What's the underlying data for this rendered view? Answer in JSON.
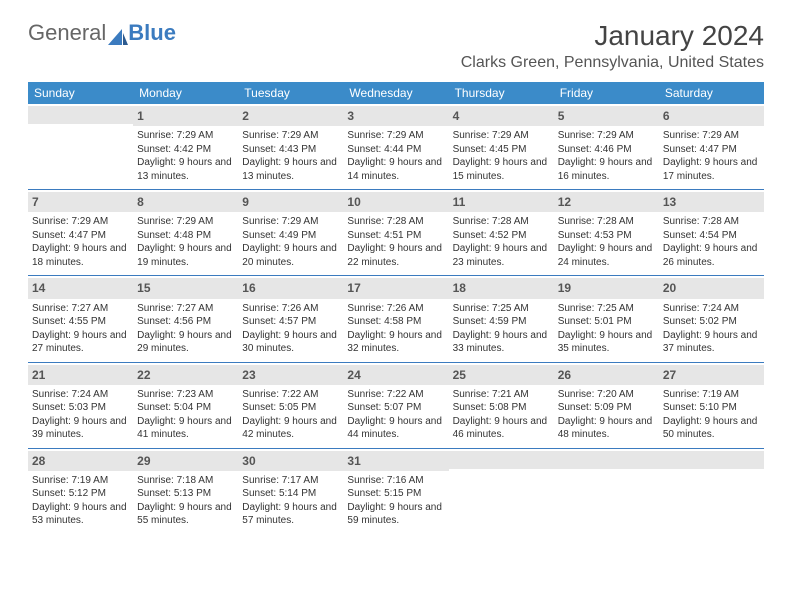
{
  "logo": {
    "first": "General",
    "second": "Blue"
  },
  "title": "January 2024",
  "location": "Clarks Green, Pennsylvania, United States",
  "dow": [
    "Sunday",
    "Monday",
    "Tuesday",
    "Wednesday",
    "Thursday",
    "Friday",
    "Saturday"
  ],
  "colors": {
    "header_bg": "#3b8bc9",
    "header_fg": "#ffffff",
    "daynum_bg": "#e6e6e6",
    "rule": "#3b7bbf",
    "brand_blue": "#3b7bbf"
  },
  "weeks": [
    [
      {
        "n": "",
        "sunrise": "",
        "sunset": "",
        "daylight": ""
      },
      {
        "n": "1",
        "sunrise": "Sunrise: 7:29 AM",
        "sunset": "Sunset: 4:42 PM",
        "daylight": "Daylight: 9 hours and 13 minutes."
      },
      {
        "n": "2",
        "sunrise": "Sunrise: 7:29 AM",
        "sunset": "Sunset: 4:43 PM",
        "daylight": "Daylight: 9 hours and 13 minutes."
      },
      {
        "n": "3",
        "sunrise": "Sunrise: 7:29 AM",
        "sunset": "Sunset: 4:44 PM",
        "daylight": "Daylight: 9 hours and 14 minutes."
      },
      {
        "n": "4",
        "sunrise": "Sunrise: 7:29 AM",
        "sunset": "Sunset: 4:45 PM",
        "daylight": "Daylight: 9 hours and 15 minutes."
      },
      {
        "n": "5",
        "sunrise": "Sunrise: 7:29 AM",
        "sunset": "Sunset: 4:46 PM",
        "daylight": "Daylight: 9 hours and 16 minutes."
      },
      {
        "n": "6",
        "sunrise": "Sunrise: 7:29 AM",
        "sunset": "Sunset: 4:47 PM",
        "daylight": "Daylight: 9 hours and 17 minutes."
      }
    ],
    [
      {
        "n": "7",
        "sunrise": "Sunrise: 7:29 AM",
        "sunset": "Sunset: 4:47 PM",
        "daylight": "Daylight: 9 hours and 18 minutes."
      },
      {
        "n": "8",
        "sunrise": "Sunrise: 7:29 AM",
        "sunset": "Sunset: 4:48 PM",
        "daylight": "Daylight: 9 hours and 19 minutes."
      },
      {
        "n": "9",
        "sunrise": "Sunrise: 7:29 AM",
        "sunset": "Sunset: 4:49 PM",
        "daylight": "Daylight: 9 hours and 20 minutes."
      },
      {
        "n": "10",
        "sunrise": "Sunrise: 7:28 AM",
        "sunset": "Sunset: 4:51 PM",
        "daylight": "Daylight: 9 hours and 22 minutes."
      },
      {
        "n": "11",
        "sunrise": "Sunrise: 7:28 AM",
        "sunset": "Sunset: 4:52 PM",
        "daylight": "Daylight: 9 hours and 23 minutes."
      },
      {
        "n": "12",
        "sunrise": "Sunrise: 7:28 AM",
        "sunset": "Sunset: 4:53 PM",
        "daylight": "Daylight: 9 hours and 24 minutes."
      },
      {
        "n": "13",
        "sunrise": "Sunrise: 7:28 AM",
        "sunset": "Sunset: 4:54 PM",
        "daylight": "Daylight: 9 hours and 26 minutes."
      }
    ],
    [
      {
        "n": "14",
        "sunrise": "Sunrise: 7:27 AM",
        "sunset": "Sunset: 4:55 PM",
        "daylight": "Daylight: 9 hours and 27 minutes."
      },
      {
        "n": "15",
        "sunrise": "Sunrise: 7:27 AM",
        "sunset": "Sunset: 4:56 PM",
        "daylight": "Daylight: 9 hours and 29 minutes."
      },
      {
        "n": "16",
        "sunrise": "Sunrise: 7:26 AM",
        "sunset": "Sunset: 4:57 PM",
        "daylight": "Daylight: 9 hours and 30 minutes."
      },
      {
        "n": "17",
        "sunrise": "Sunrise: 7:26 AM",
        "sunset": "Sunset: 4:58 PM",
        "daylight": "Daylight: 9 hours and 32 minutes."
      },
      {
        "n": "18",
        "sunrise": "Sunrise: 7:25 AM",
        "sunset": "Sunset: 4:59 PM",
        "daylight": "Daylight: 9 hours and 33 minutes."
      },
      {
        "n": "19",
        "sunrise": "Sunrise: 7:25 AM",
        "sunset": "Sunset: 5:01 PM",
        "daylight": "Daylight: 9 hours and 35 minutes."
      },
      {
        "n": "20",
        "sunrise": "Sunrise: 7:24 AM",
        "sunset": "Sunset: 5:02 PM",
        "daylight": "Daylight: 9 hours and 37 minutes."
      }
    ],
    [
      {
        "n": "21",
        "sunrise": "Sunrise: 7:24 AM",
        "sunset": "Sunset: 5:03 PM",
        "daylight": "Daylight: 9 hours and 39 minutes."
      },
      {
        "n": "22",
        "sunrise": "Sunrise: 7:23 AM",
        "sunset": "Sunset: 5:04 PM",
        "daylight": "Daylight: 9 hours and 41 minutes."
      },
      {
        "n": "23",
        "sunrise": "Sunrise: 7:22 AM",
        "sunset": "Sunset: 5:05 PM",
        "daylight": "Daylight: 9 hours and 42 minutes."
      },
      {
        "n": "24",
        "sunrise": "Sunrise: 7:22 AM",
        "sunset": "Sunset: 5:07 PM",
        "daylight": "Daylight: 9 hours and 44 minutes."
      },
      {
        "n": "25",
        "sunrise": "Sunrise: 7:21 AM",
        "sunset": "Sunset: 5:08 PM",
        "daylight": "Daylight: 9 hours and 46 minutes."
      },
      {
        "n": "26",
        "sunrise": "Sunrise: 7:20 AM",
        "sunset": "Sunset: 5:09 PM",
        "daylight": "Daylight: 9 hours and 48 minutes."
      },
      {
        "n": "27",
        "sunrise": "Sunrise: 7:19 AM",
        "sunset": "Sunset: 5:10 PM",
        "daylight": "Daylight: 9 hours and 50 minutes."
      }
    ],
    [
      {
        "n": "28",
        "sunrise": "Sunrise: 7:19 AM",
        "sunset": "Sunset: 5:12 PM",
        "daylight": "Daylight: 9 hours and 53 minutes."
      },
      {
        "n": "29",
        "sunrise": "Sunrise: 7:18 AM",
        "sunset": "Sunset: 5:13 PM",
        "daylight": "Daylight: 9 hours and 55 minutes."
      },
      {
        "n": "30",
        "sunrise": "Sunrise: 7:17 AM",
        "sunset": "Sunset: 5:14 PM",
        "daylight": "Daylight: 9 hours and 57 minutes."
      },
      {
        "n": "31",
        "sunrise": "Sunrise: 7:16 AM",
        "sunset": "Sunset: 5:15 PM",
        "daylight": "Daylight: 9 hours and 59 minutes."
      },
      {
        "n": "",
        "sunrise": "",
        "sunset": "",
        "daylight": ""
      },
      {
        "n": "",
        "sunrise": "",
        "sunset": "",
        "daylight": ""
      },
      {
        "n": "",
        "sunrise": "",
        "sunset": "",
        "daylight": ""
      }
    ]
  ]
}
